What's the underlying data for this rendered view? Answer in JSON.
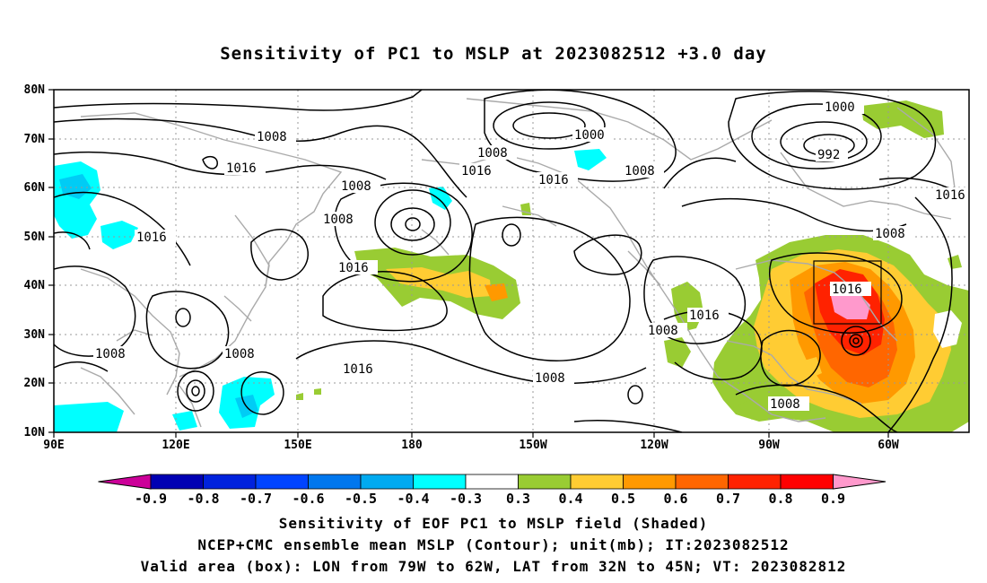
{
  "title": "Sensitivity of PC1 to MSLP at 2023082512 +3.0 day",
  "lat_labels": [
    "80N",
    "70N",
    "60N",
    "50N",
    "40N",
    "30N",
    "20N",
    "10N"
  ],
  "lon_labels": [
    "90E",
    "120E",
    "150E",
    "180",
    "150W",
    "120W",
    "90W",
    "60W"
  ],
  "contour_labels": {
    "c1": "1008",
    "c2": "1016",
    "c3": "1008",
    "c4": "1008",
    "c5": "1016",
    "c6": "1000",
    "c7": "1008",
    "c8": "1016",
    "c9": "1016",
    "c10": "1008",
    "c11": "1000",
    "c12": "992",
    "c13": "1016",
    "c14": "1008",
    "c15": "1016",
    "c16": "1016",
    "c17": "1008",
    "c18": "1008",
    "c19": "1008",
    "c20": "1016",
    "c21": "1016",
    "c22": "1008",
    "c23": "1008"
  },
  "colorbar": {
    "ticks": [
      "-0.9",
      "-0.8",
      "-0.7",
      "-0.6",
      "-0.5",
      "-0.4",
      "-0.3",
      "0.3",
      "0.4",
      "0.5",
      "0.6",
      "0.7",
      "0.8",
      "0.9"
    ],
    "colors": [
      "#cc0099",
      "#0000b3",
      "#0022dd",
      "#0044ff",
      "#0077ee",
      "#00aaf0",
      "#00ffff",
      "#ffffff",
      "#99cc33",
      "#ffcc33",
      "#ff9900",
      "#ff6600",
      "#ff2200",
      "#ff0000",
      "#ff99cc"
    ]
  },
  "footer": {
    "line1": "Sensitivity of EOF PC1 to MSLP field (Shaded)",
    "line2": "NCEP+CMC ensemble mean MSLP (Contour); unit(mb); IT:2023082512",
    "line3": "Valid area (box): LON from 79W to 62W, LAT from 32N to 45N; VT: 2023082812"
  }
}
